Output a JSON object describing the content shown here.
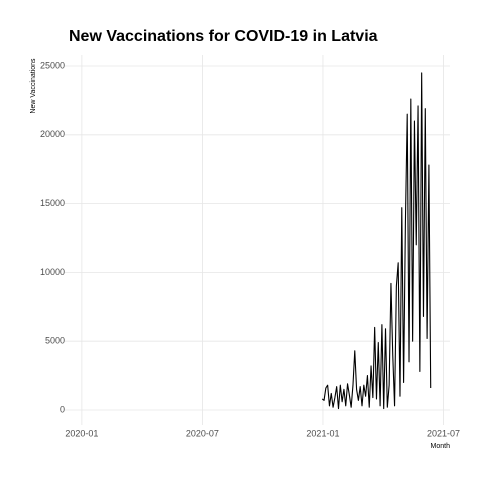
{
  "chart_data": {
    "type": "line",
    "title": "New Vaccinations for COVID-19 in Latvia",
    "x_label": "Month",
    "y_label": "New Vaccinations",
    "x": [
      2020.997,
      2021.0045,
      2021.012,
      2021.0195,
      2021.027,
      2021.0345,
      2021.042,
      2021.0495,
      2021.057,
      2021.0645,
      2021.072,
      2021.0795,
      2021.087,
      2021.0945,
      2021.102,
      2021.1095,
      2021.117,
      2021.1245,
      2021.132,
      2021.1395,
      2021.147,
      2021.1545,
      2021.162,
      2021.1695,
      2021.177,
      2021.1845,
      2021.192,
      2021.1995,
      2021.207,
      2021.2145,
      2021.222,
      2021.2295,
      2021.237,
      2021.2445,
      2021.252,
      2021.2595,
      2021.267,
      2021.2745,
      2021.282,
      2021.2895,
      2021.297,
      2021.3045,
      2021.312,
      2021.3195,
      2021.327,
      2021.3345,
      2021.342,
      2021.3495,
      2021.357,
      2021.3645,
      2021.372,
      2021.3795,
      2021.387,
      2021.3945,
      2021.402,
      2021.4095,
      2021.417,
      2021.4245,
      2021.432,
      2021.4395,
      2021.447
    ],
    "series": [
      {
        "name": "New Vaccinations",
        "color": "#000000",
        "values": [
          800,
          700,
          1600,
          1800,
          300,
          1200,
          200,
          900,
          1700,
          100,
          1800,
          600,
          1500,
          300,
          1900,
          1100,
          200,
          1800,
          4300,
          1500,
          700,
          1700,
          300,
          1800,
          1000,
          2500,
          200,
          3200,
          900,
          6000,
          800,
          4900,
          300,
          6200,
          100,
          5900,
          200,
          1800,
          9200,
          4000,
          300,
          9000,
          10700,
          1000,
          14700,
          2000,
          13600,
          21500,
          3500,
          22600,
          5000,
          21000,
          12000,
          22100,
          2800,
          24500,
          6800,
          21900,
          5200,
          17800,
          1600
        ]
      }
    ],
    "xlim": [
      2019.93,
      2021.527
    ],
    "xticks": [
      {
        "value": 2020.0,
        "label": "2020-01"
      },
      {
        "value": 2020.5,
        "label": "2020-07"
      },
      {
        "value": 2021.0,
        "label": "2021-01"
      },
      {
        "value": 2021.5,
        "label": "2021-07"
      }
    ],
    "ylim": [
      -1090,
      25800
    ],
    "yticks": [
      0,
      5000,
      10000,
      15000,
      20000,
      25000
    ],
    "grid": true
  }
}
